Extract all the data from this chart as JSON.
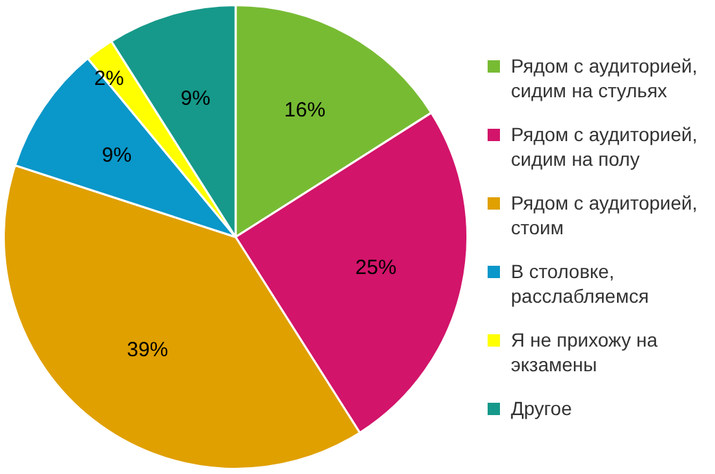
{
  "chart_data": {
    "type": "pie",
    "categories": [
      "Рядом с аудиторией, сидим на стульях",
      "Рядом с аудиторией, сидим на полу",
      "Рядом с аудиторией, стоим",
      "В столовке, расслабляемся",
      "Я не прихожу на экзамены",
      "Другое"
    ],
    "values": [
      16,
      25,
      39,
      9,
      2,
      9
    ],
    "colors": [
      "#77bb33",
      "#d2146a",
      "#e0a000",
      "#0a97c9",
      "#ffff00",
      "#16998a"
    ],
    "value_labels": [
      "16%",
      "25%",
      "39%",
      "9%",
      "2%",
      "9%"
    ],
    "legend": "right"
  }
}
